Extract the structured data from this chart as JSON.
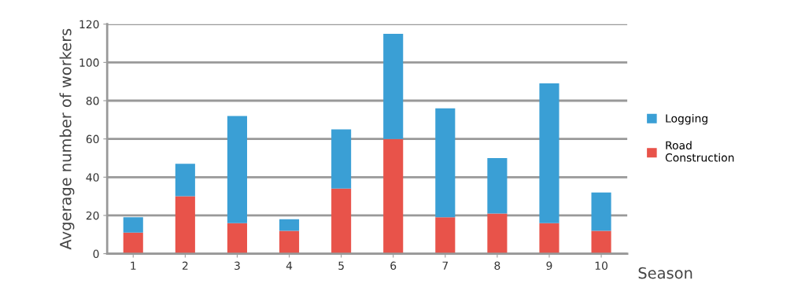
{
  "chart_data": {
    "type": "bar",
    "stacked": true,
    "xlabel": "Season",
    "ylabel": "Avgerage number of workers",
    "categories": [
      "1",
      "2",
      "3",
      "4",
      "5",
      "6",
      "7",
      "8",
      "9",
      "10"
    ],
    "series": [
      {
        "name": "Road Construction",
        "color": "#e8534a",
        "values": [
          11,
          30,
          16,
          12,
          34,
          60,
          19,
          21,
          16,
          12
        ]
      },
      {
        "name": "Logging",
        "color": "#3a9fd5",
        "values": [
          8,
          17,
          56,
          6,
          31,
          55,
          57,
          29,
          73,
          20
        ]
      }
    ],
    "ylim": [
      0,
      120
    ],
    "yticks": [
      0,
      20,
      40,
      60,
      80,
      100,
      120
    ],
    "grid": "y",
    "legend": "right"
  }
}
